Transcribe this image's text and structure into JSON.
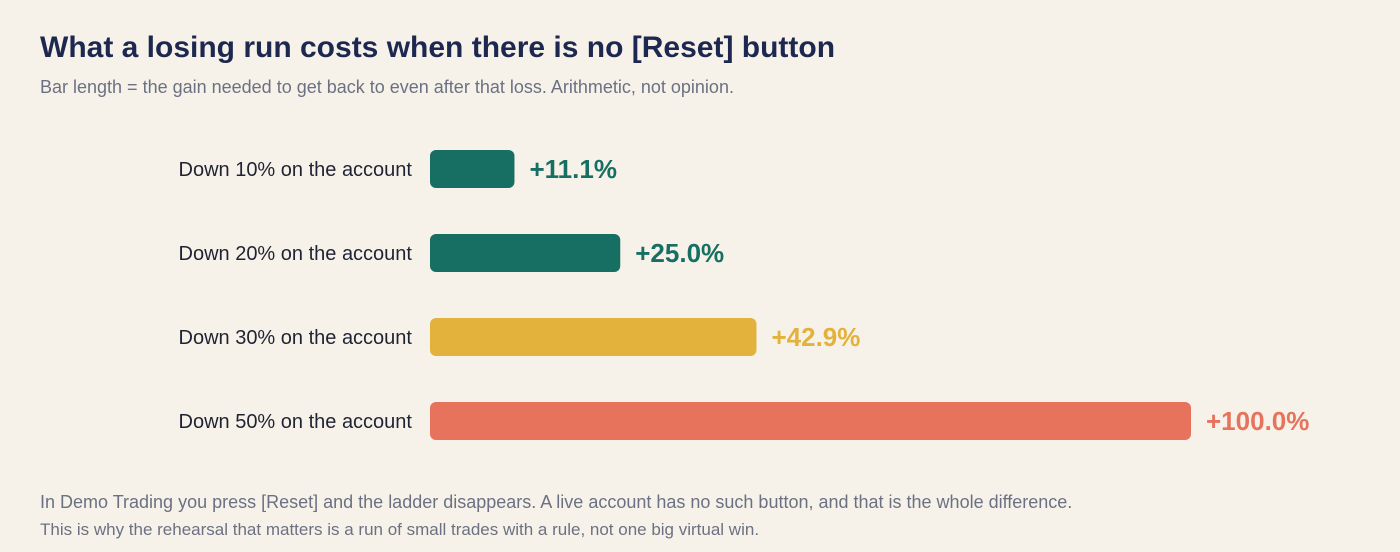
{
  "title": "What a losing run costs when there is no [Reset] button",
  "subtitle": "Bar length = the gain needed to get back to even after that loss. Arithmetic, not opinion.",
  "footer": {
    "line1": "In Demo Trading you press [Reset] and the ladder disappears. A live account has no such button, and that is the whole difference.",
    "line2": "This is why the rehearsal that matters is a run of small trades with a rule, not one big virtual win."
  },
  "chart_data": {
    "type": "bar",
    "orientation": "horizontal",
    "categories": [
      "Down 10% on the account",
      "Down 20% on the account",
      "Down 30% on the account",
      "Down 50% on the account"
    ],
    "values": [
      11.1,
      25.0,
      42.9,
      100.0
    ],
    "data_labels": [
      "+11.1%",
      "+25.0%",
      "+42.9%",
      "+100.0%"
    ],
    "colors": [
      "#176f63",
      "#176f63",
      "#e3b23c",
      "#e8735c"
    ],
    "grid": false,
    "legend": "none",
    "xlim": [
      0,
      100
    ]
  }
}
